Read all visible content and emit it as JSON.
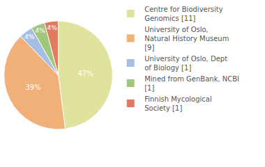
{
  "chart_data": {
    "type": "pie",
    "categories": [
      "Centre for Biodiversity Genomics [11]",
      "University of Oslo, Natural History Museum [9]",
      "University of Oslo, Dept of Biology [1]",
      "Mined from GenBank, NCBI [1]",
      "Finnish Mycological Society [1]"
    ],
    "values": [
      47,
      39,
      4,
      4,
      4
    ],
    "value_labels": [
      "47%",
      "39%",
      "4%",
      "4%",
      "4%"
    ],
    "colors": [
      "#dfe39e",
      "#f0b078",
      "#a8bde3",
      "#a0c77c",
      "#e07b62"
    ],
    "data_labels": true,
    "legend": "right"
  }
}
